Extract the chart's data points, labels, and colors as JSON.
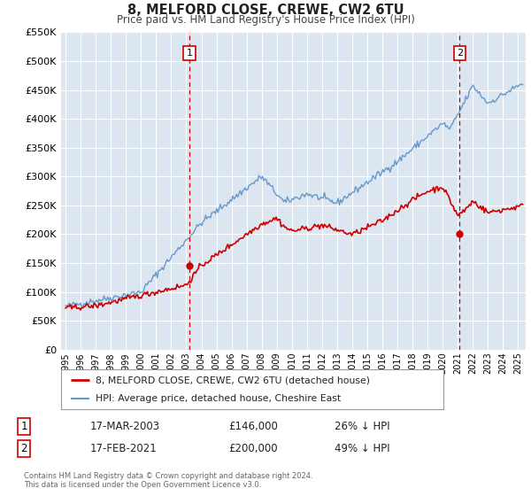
{
  "title": "8, MELFORD CLOSE, CREWE, CW2 6TU",
  "subtitle": "Price paid vs. HM Land Registry's House Price Index (HPI)",
  "background_color": "#ffffff",
  "plot_bg_color": "#dce6f0",
  "grid_color": "#ffffff",
  "ylim": [
    0,
    550000
  ],
  "yticks": [
    0,
    50000,
    100000,
    150000,
    200000,
    250000,
    300000,
    350000,
    400000,
    450000,
    500000,
    550000
  ],
  "ytick_labels": [
    "£0",
    "£50K",
    "£100K",
    "£150K",
    "£200K",
    "£250K",
    "£300K",
    "£350K",
    "£400K",
    "£450K",
    "£500K",
    "£550K"
  ],
  "xlim_start": 1994.7,
  "xlim_end": 2025.5,
  "xticks": [
    1995,
    1996,
    1997,
    1998,
    1999,
    2000,
    2001,
    2002,
    2003,
    2004,
    2005,
    2006,
    2007,
    2008,
    2009,
    2010,
    2011,
    2012,
    2013,
    2014,
    2015,
    2016,
    2017,
    2018,
    2019,
    2020,
    2021,
    2022,
    2023,
    2024,
    2025
  ],
  "marker1_x": 2003.21,
  "marker1_y": 146000,
  "marker1_label": "1",
  "marker1_date": "17-MAR-2003",
  "marker1_price": "£146,000",
  "marker1_hpi": "26% ↓ HPI",
  "marker2_x": 2021.12,
  "marker2_y": 200000,
  "marker2_label": "2",
  "marker2_date": "17-FEB-2021",
  "marker2_price": "£200,000",
  "marker2_hpi": "49% ↓ HPI",
  "line1_color": "#cc0000",
  "line2_color": "#6699cc",
  "marker_color": "#cc0000",
  "dashed_line_color": "#cc0000",
  "legend1_label": "8, MELFORD CLOSE, CREWE, CW2 6TU (detached house)",
  "legend2_label": "HPI: Average price, detached house, Cheshire East",
  "footer1": "Contains HM Land Registry data © Crown copyright and database right 2024.",
  "footer2": "This data is licensed under the Open Government Licence v3.0."
}
